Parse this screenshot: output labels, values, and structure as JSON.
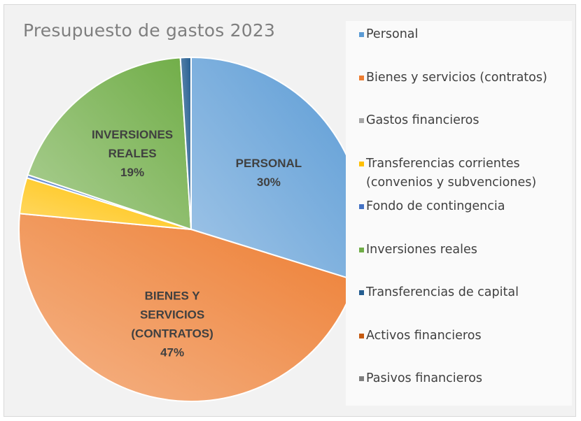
{
  "chart_data": {
    "type": "pie",
    "title": "Presupuesto de gastos 2023",
    "slices": [
      {
        "name": "Personal",
        "value": 30,
        "color": "#5b9bd5",
        "label_lines": [
          "PERSONAL",
          "30%"
        ]
      },
      {
        "name": "Bienes y servicios (contratos)",
        "value": 47,
        "color": "#ed7d31",
        "label_lines": [
          "BIENES Y",
          "SERVICIOS",
          "(CONTRATOS)",
          "47%"
        ]
      },
      {
        "name": "Gastos financieros",
        "value": 0,
        "color": "#a5a5a5",
        "label_lines": []
      },
      {
        "name": "Transferencias corrientes (convenios y subvenciones)",
        "value": 3.4,
        "color": "#ffc000",
        "label_lines": []
      },
      {
        "name": "Fondo de contingencia",
        "value": 0.3,
        "color": "#4472c4",
        "label_lines": []
      },
      {
        "name": "Inversiones reales",
        "value": 19,
        "color": "#70ad47",
        "label_lines": [
          "INVERSIONES",
          "REALES",
          "19%"
        ]
      },
      {
        "name": "Transferencias de capital",
        "value": 1,
        "color": "#255e91",
        "label_lines": []
      },
      {
        "name": "Activos financieros",
        "value": 0,
        "color": "#c55a11",
        "label_lines": []
      },
      {
        "name": "Pasivos financieros",
        "value": 0,
        "color": "#7f7f7f",
        "label_lines": []
      }
    ],
    "legend": {
      "position": "right",
      "entries": [
        {
          "lines": [
            "Personal"
          ],
          "color": "#5b9bd5"
        },
        {
          "lines": [
            "Bienes y servicios (contratos)"
          ],
          "color": "#ed7d31"
        },
        {
          "lines": [
            "Gastos financieros"
          ],
          "color": "#a5a5a5"
        },
        {
          "lines": [
            "Transferencias corrientes",
            "(convenios y subvenciones)"
          ],
          "color": "#ffc000"
        },
        {
          "lines": [
            "Fondo de contingencia"
          ],
          "color": "#4472c4"
        },
        {
          "lines": [
            "Inversiones reales"
          ],
          "color": "#70ad47"
        },
        {
          "lines": [
            "Transferencias de capital"
          ],
          "color": "#255e91"
        },
        {
          "lines": [
            "Activos financieros"
          ],
          "color": "#c55a11"
        },
        {
          "lines": [
            "Pasivos financieros"
          ],
          "color": "#7f7f7f"
        }
      ]
    }
  }
}
